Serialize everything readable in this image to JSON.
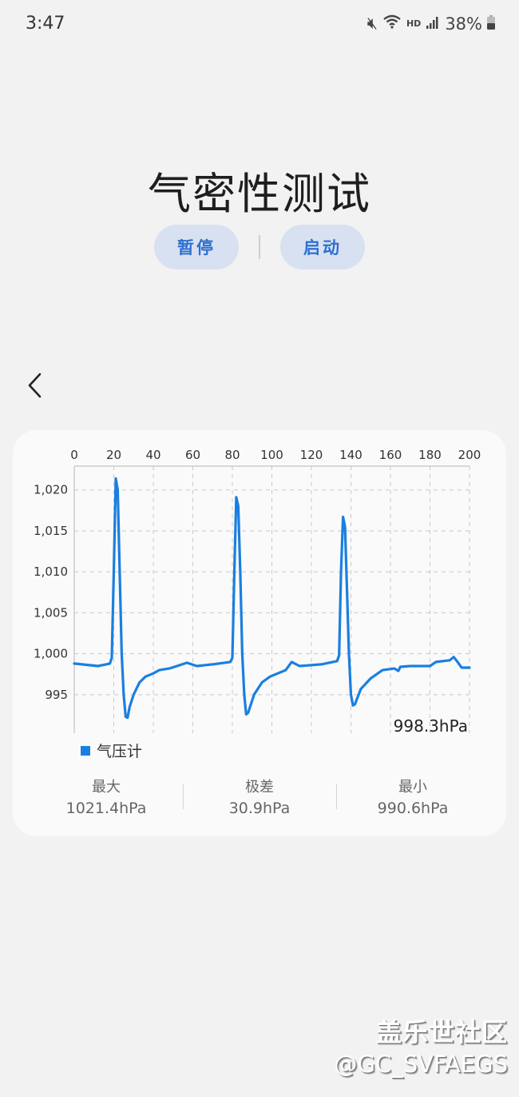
{
  "status_bar": {
    "time": "3:47",
    "network": "HD",
    "battery": "38%",
    "icons": [
      "mute-icon",
      "wifi-icon",
      "signal-icon",
      "battery-icon"
    ]
  },
  "page": {
    "title": "气密性测试",
    "pause_label": "暂停",
    "start_label": "启动",
    "back_icon": "chevron-left-icon"
  },
  "colors": {
    "accent": "#1a7fe0",
    "button_bg": "#d8e1f1",
    "button_text": "#2f6fd0"
  },
  "chart_data": {
    "type": "line",
    "xlim": [
      0,
      200
    ],
    "ylim": [
      990.3,
      1022.9
    ],
    "x_ticks": [
      0,
      20,
      40,
      60,
      80,
      100,
      120,
      140,
      160,
      180,
      200
    ],
    "y_ticks": [
      995,
      1000,
      1005,
      1010,
      1015,
      1020
    ],
    "y_tick_labels": [
      "995",
      "1,000",
      "1,005",
      "1,010",
      "1,015",
      "1,020"
    ],
    "x_axis_position": "top",
    "grid": true,
    "legend_placement": "bottom-left",
    "current_value_label": "998.3hPa",
    "series": [
      {
        "name": "气压计",
        "color": "#1a7fe0",
        "x": [
          0,
          12,
          18,
          19,
          20,
          21,
          22,
          23,
          24,
          25,
          26,
          27,
          28,
          30,
          33,
          36,
          40,
          43,
          48,
          52,
          57,
          62,
          70,
          79,
          80,
          81,
          82,
          83,
          84,
          85,
          86,
          87,
          88,
          91,
          95,
          99,
          103,
          107,
          110,
          114,
          125,
          133,
          134,
          135,
          136,
          137,
          138,
          139,
          140,
          141,
          142,
          145,
          150,
          156,
          162,
          164,
          165,
          170,
          180,
          183,
          190,
          192,
          194,
          196,
          200
        ],
        "y": [
          998.8,
          998.5,
          998.8,
          999.5,
          1010,
          1021.4,
          1020,
          1010,
          1000,
          995,
          992.3,
          992.2,
          993.5,
          995,
          996.5,
          997.2,
          997.6,
          998,
          998.2,
          998.5,
          998.9,
          998.5,
          998.7,
          999,
          999.5,
          1010,
          1019.1,
          1018,
          1010,
          1000,
          995,
          992.6,
          992.8,
          995,
          996.5,
          997.2,
          997.6,
          998,
          999,
          998.5,
          998.7,
          999.1,
          999.8,
          1010,
          1016.7,
          1015.5,
          1008,
          1000,
          995,
          993.7,
          993.8,
          995.7,
          997,
          998,
          998.2,
          997.9,
          998.4,
          998.5,
          998.5,
          999,
          999.2,
          999.6,
          999,
          998.3,
          998.3
        ]
      }
    ]
  },
  "stats": [
    {
      "label": "最大",
      "value": "1021.4hPa"
    },
    {
      "label": "极差",
      "value": "30.9hPa"
    },
    {
      "label": "最小",
      "value": "990.6hPa"
    }
  ],
  "watermark": {
    "line1": "盖乐世社区",
    "line2": "@GC_SVFAEGS"
  }
}
